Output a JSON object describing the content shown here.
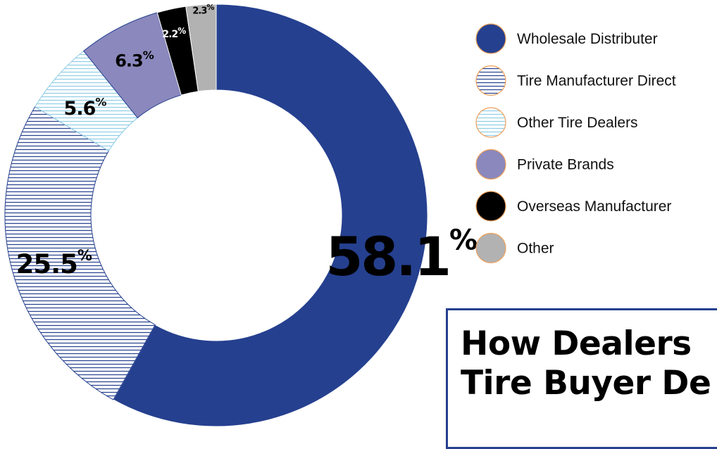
{
  "chart_data": {
    "type": "pie",
    "title_lines": [
      "How Dealers",
      "Tire Buyer De"
    ],
    "categories": [
      "Wholesale Distributer",
      "Tire Manufacturer Direct",
      "Other Tire Dealers",
      "Private Brands",
      "Overseas Manufacturer",
      "Other"
    ],
    "values": [
      58.1,
      25.5,
      5.6,
      6.3,
      2.2,
      2.3
    ],
    "value_labels": [
      {
        "num": "58.1",
        "unit": "%"
      },
      {
        "num": "25.5",
        "unit": "%"
      },
      {
        "num": "5.6",
        "unit": "%"
      },
      {
        "num": "6.3",
        "unit": "%"
      },
      {
        "num": "2.2",
        "unit": "%"
      },
      {
        "num": "2.3",
        "unit": "%"
      }
    ],
    "colors": [
      "#25408f",
      "hatch-navy",
      "hatch-lightblue",
      "#8a88bd",
      "#000000",
      "#b2b2b2"
    ],
    "legend_position": "right",
    "donut": true
  }
}
